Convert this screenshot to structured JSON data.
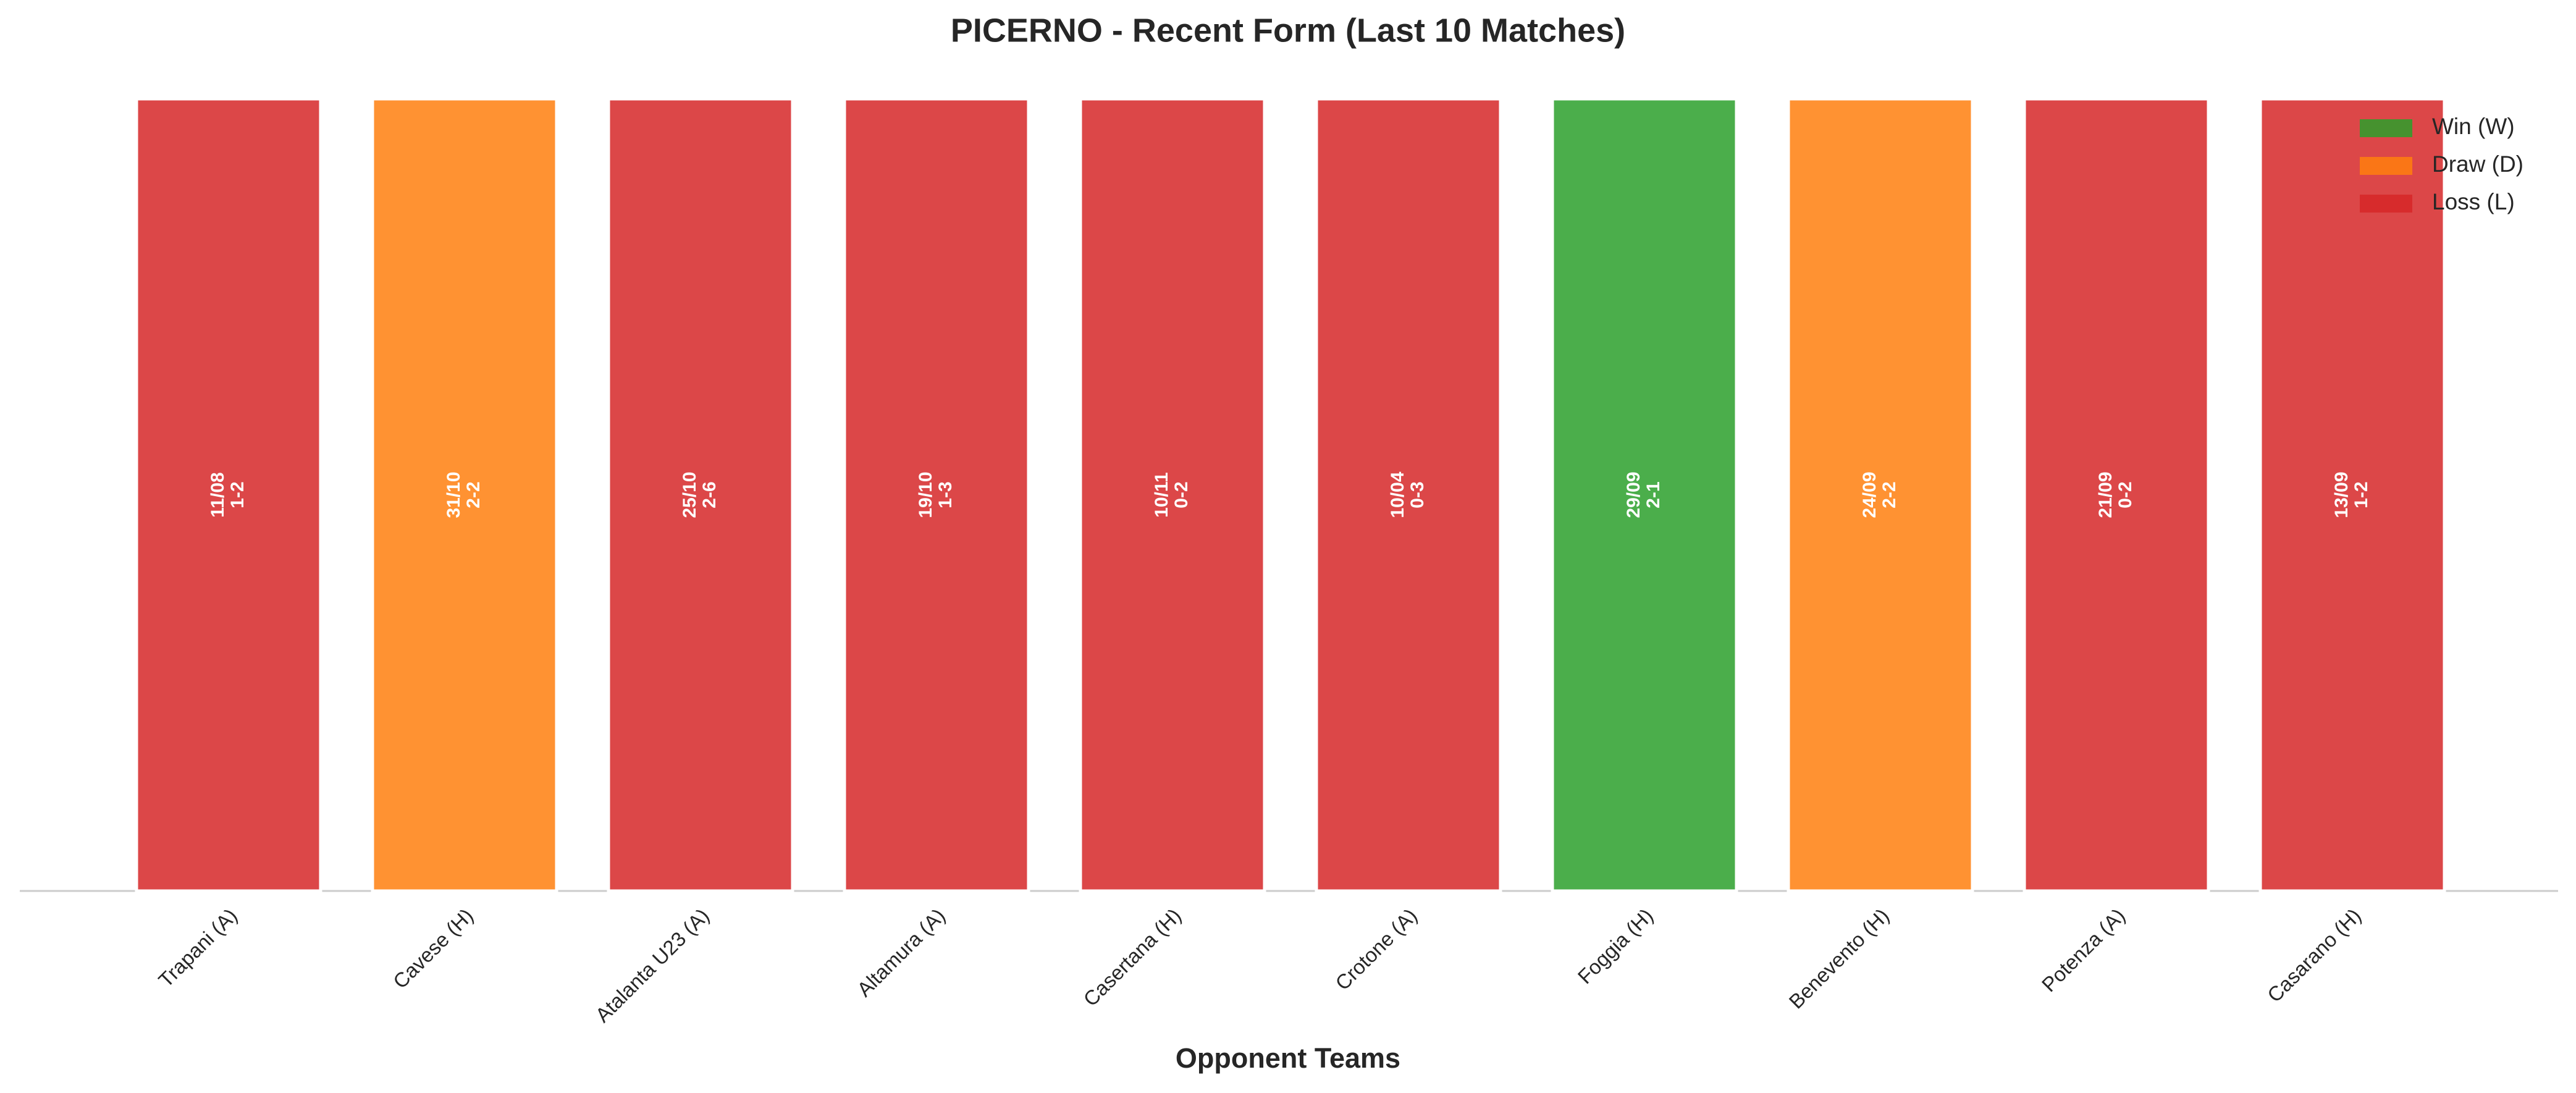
{
  "chart_data": {
    "type": "bar",
    "title": "PICERNO - Recent Form (Last 10 Matches)",
    "x_label": "Opponent Teams",
    "categories": [
      "Trapani (A)",
      "Cavese (H)",
      "Atalanta U23 (A)",
      "Altamura (A)",
      "Casertana (H)",
      "Crotone (A)",
      "Foggia (H)",
      "Benevento (H)",
      "Potenza (A)",
      "Casarano (H)"
    ],
    "values": [
      1,
      1,
      1,
      1,
      1,
      1,
      1,
      1,
      1,
      1
    ],
    "dates": [
      "11/08",
      "31/10",
      "25/10",
      "19/10",
      "10/11",
      "10/04",
      "29/09",
      "24/09",
      "21/09",
      "13/09"
    ],
    "scores": [
      "1-2",
      "2-2",
      "2-6",
      "1-3",
      "0-2",
      "0-3",
      "2-1",
      "2-2",
      "0-2",
      "1-2"
    ],
    "colors": [
      "#d62728",
      "#ff7f0e",
      "#d62728",
      "#d62728",
      "#d62728",
      "#d62728",
      "#2ca02c",
      "#ff7f0e",
      "#d62728",
      "#d62728"
    ],
    "ylim": [
      0,
      1
    ],
    "legend": [
      {
        "name": "Win (W)",
        "color": "#2ca02c"
      },
      {
        "name": "Draw (D)",
        "color": "#ff7f0e"
      },
      {
        "name": "Loss (L)",
        "color": "#d62728"
      }
    ],
    "legend_position": "upper right"
  }
}
